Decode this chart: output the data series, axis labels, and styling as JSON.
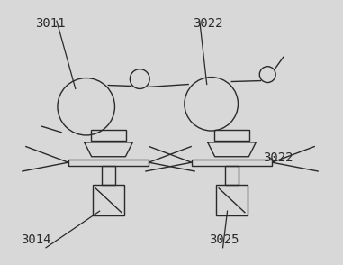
{
  "bg_color": "#d8d8d8",
  "line_color": "#2a2a2a",
  "text_color": "#2a2a2a",
  "font_size": 10,
  "fig_width": 3.81,
  "fig_height": 2.94,
  "dpi": 100
}
